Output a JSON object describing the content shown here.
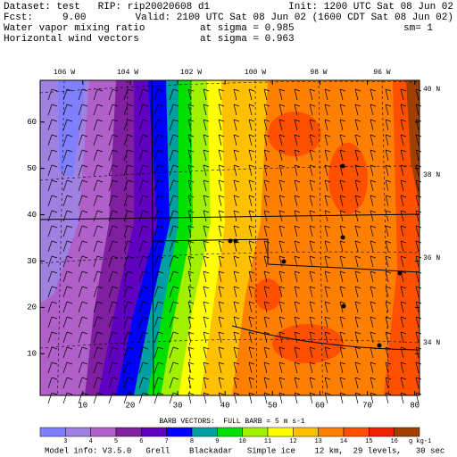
{
  "header": {
    "dataset": "Dataset: test   RIP: rip20020608 d1",
    "init": "Init: 1200 UTC Sat 08 Jun 02",
    "fcst": "Fcst:     9.00",
    "valid": "Valid: 2100 UTC Sat 08 Jun 02 (1600 CDT Sat 08 Jun 02)",
    "field1": "Water vapor mixing ratio",
    "level1": "at sigma = 0.985",
    "smooth": "sm= 1",
    "field2": "Horizontal wind vectors",
    "level2": "at sigma = 0.963"
  },
  "map": {
    "xlim": [
      1,
      81
    ],
    "ylim": [
      1,
      69
    ],
    "xticks": [
      10,
      20,
      30,
      40,
      50,
      60,
      70,
      80
    ],
    "yticks": [
      10,
      20,
      30,
      40,
      50,
      60
    ],
    "lon_labels": [
      "106 W",
      "104 W",
      "102 W",
      "100 W",
      "98 W",
      "96 W"
    ],
    "lat_labels": [
      "40 N",
      "38 N",
      "36 N",
      "34 N"
    ]
  },
  "colorbar": {
    "colors": [
      "#8080ff",
      "#a080e0",
      "#b060c8",
      "#8020a0",
      "#6000c0",
      "#0000ff",
      "#00a0a0",
      "#00e000",
      "#a0f000",
      "#ffff00",
      "#ffc000",
      "#ff8000",
      "#ff5000",
      "#f02000",
      "#a04000"
    ],
    "labels": [
      3,
      4,
      5,
      6,
      7,
      8,
      9,
      10,
      11,
      12,
      13,
      14,
      15,
      16
    ],
    "units": "g kg-1"
  },
  "barb_note": "BARB VECTORS:  FULL BARB = 5 m s-1",
  "footer": "Model info: V3.5.0   Grell    Blackadar   Simple ice    12 km,  29 levels,   30 sec"
}
